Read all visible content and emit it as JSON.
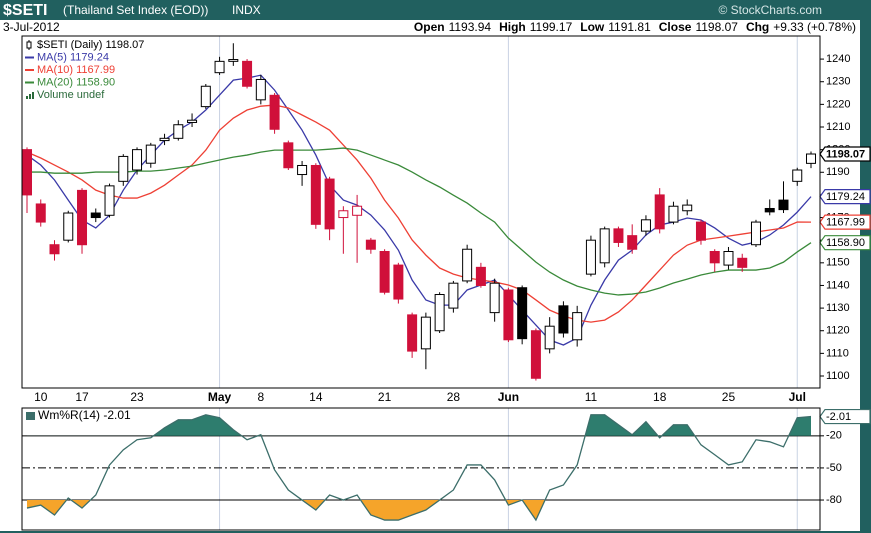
{
  "chart_data": [
    {
      "type": "candlestick",
      "title": "$SETI",
      "subtitle": "(Thailand Set Index (EOD))",
      "exchange": "INDX",
      "source": "© StockCharts.com",
      "date": "3-Jul-2012",
      "header_labels": [
        "Open",
        "High",
        "Low",
        "Close",
        "Chg"
      ],
      "change": "+9.33 (+0.78%)",
      "categories": [
        null,
        "10",
        null,
        null,
        "17",
        null,
        null,
        null,
        "23",
        null,
        null,
        null,
        null,
        null,
        "May",
        null,
        null,
        "8",
        null,
        null,
        null,
        "14",
        null,
        null,
        null,
        null,
        "21",
        null,
        null,
        null,
        null,
        "28",
        null,
        null,
        null,
        "Jun",
        null,
        null,
        null,
        null,
        null,
        "11",
        null,
        null,
        null,
        null,
        "18",
        null,
        null,
        null,
        null,
        "25",
        null,
        null,
        null,
        null,
        "Jul",
        null
      ],
      "series": [
        {
          "name": "$SETI (Daily) 1198.07",
          "open": [
            1200,
            1176,
            1158,
            1160,
            1182,
            1172,
            1171,
            1186,
            1191,
            1194,
            1204,
            1205,
            1212,
            1219,
            1234,
            1239,
            1239,
            1222,
            1224,
            1203,
            1189,
            1193,
            1187,
            1170,
            1171,
            1160,
            1155,
            1149,
            1127,
            1112,
            1120,
            1130,
            1142,
            1148,
            1128,
            1138,
            1139,
            1120,
            1112,
            1131,
            1116,
            1145,
            1150,
            1165,
            1162,
            1164,
            1180,
            1168,
            1173,
            1168,
            1155,
            1149,
            1152,
            1158,
            1174,
            1177.7,
            1186,
            1193.94
          ],
          "high": [
            1201,
            1178,
            1160,
            1173,
            1183,
            1174,
            1185,
            1198,
            1201,
            1203,
            1207,
            1213,
            1216,
            1229,
            1241,
            1247,
            1240,
            1233,
            1225,
            1204,
            1195,
            1194,
            1188,
            1175,
            1180,
            1161,
            1156,
            1150,
            1128,
            1128,
            1137,
            1142,
            1158,
            1150,
            1143,
            1139,
            1140,
            1121,
            1126,
            1133,
            1131,
            1162,
            1166,
            1166,
            1167,
            1171,
            1183,
            1177,
            1178,
            1169,
            1156,
            1157,
            1154,
            1169,
            1178,
            1186,
            1192,
            1199.17
          ],
          "low": [
            1172,
            1166,
            1151,
            1159,
            1154,
            1168,
            1170,
            1184,
            1189,
            1192,
            1202,
            1204,
            1210,
            1218,
            1233,
            1237,
            1227,
            1220,
            1207,
            1191,
            1184,
            1165,
            1160,
            1154,
            1150,
            1154,
            1136,
            1132,
            1108,
            1103,
            1119,
            1128,
            1141,
            1139,
            1124,
            1115,
            1114,
            1098,
            1110,
            1117,
            1113,
            1144,
            1148,
            1157,
            1154,
            1162,
            1163,
            1167,
            1171,
            1158,
            1146,
            1147,
            1146,
            1157,
            1171,
            1172,
            1184,
            1191.81
          ],
          "close": [
            1180,
            1168,
            1154,
            1172,
            1158,
            1170,
            1184,
            1197,
            1200,
            1202,
            1205,
            1211,
            1213,
            1228,
            1239,
            1239.8,
            1228,
            1231,
            1209,
            1192,
            1193,
            1167,
            1165,
            1173,
            1175,
            1156,
            1137,
            1134,
            1111,
            1126,
            1136,
            1141,
            1156,
            1140,
            1141,
            1116,
            1116.5,
            1099,
            1122,
            1119,
            1128,
            1160,
            1165,
            1159,
            1156,
            1169,
            1165,
            1175,
            1175.5,
            1160,
            1150,
            1155,
            1148,
            1168,
            1172.5,
            1173.5,
            1191,
            1198.07
          ],
          "colors": [
            "#d0103a",
            "#d0103a",
            "#d0103a",
            "#000000",
            "#d0103a",
            "#000000",
            "#000000",
            "#000000",
            "#000000",
            "#000000",
            "#000000",
            "#000000",
            "#000000",
            "#000000",
            "#000000",
            "#000000",
            "#d0103a",
            "#000000",
            "#d0103a",
            "#d0103a",
            "#000000",
            "#d0103a",
            "#d0103a",
            "#d0103a",
            "#d0103a",
            "#d0103a",
            "#d0103a",
            "#d0103a",
            "#d0103a",
            "#000000",
            "#000000",
            "#000000",
            "#000000",
            "#d0103a",
            "#000000",
            "#d0103a",
            "#000000",
            "#d0103a",
            "#000000",
            "#000000",
            "#000000",
            "#000000",
            "#000000",
            "#d0103a",
            "#d0103a",
            "#000000",
            "#d0103a",
            "#000000",
            "#000000",
            "#d0103a",
            "#d0103a",
            "#000000",
            "#d0103a",
            "#000000",
            "#000000",
            "#000000",
            "#000000",
            "#000000"
          ]
        },
        {
          "name": "MA(5) 1179.24",
          "color": "#3a3aa8",
          "values": [
            1197.6,
            1193.2,
            1186.6,
            1177.7,
            1168.9,
            1165.4,
            1171.1,
            1182.1,
            1191,
            1197.6,
            1204.2,
            1208.6,
            1212.2,
            1217.5,
            1224.1,
            1230.7,
            1231.6,
            1232.9,
            1226.3,
            1217.5,
            1208.6,
            1197.6,
            1184.3,
            1177.7,
            1175.5,
            1171.1,
            1164.5,
            1155.6,
            1142.4,
            1133.6,
            1131.3,
            1131.3,
            1138,
            1140.2,
            1142.4,
            1135.8,
            1129.1,
            1122.5,
            1115.9,
            1113.7,
            1116.8,
            1131.3,
            1142.4,
            1151.2,
            1155.6,
            1162.3,
            1166.7,
            1168,
            1169.8,
            1168.9,
            1165.4,
            1160.9,
            1157.8,
            1159.2,
            1162.3,
            1166.7,
            1172.4,
            1179.24
          ]
        },
        {
          "name": "MA(10) 1167.99",
          "color": "#ee4035",
          "values": [
            1198.9,
            1196.3,
            1193.2,
            1190.1,
            1186.6,
            1182.1,
            1179.9,
            1178.6,
            1178.6,
            1180.8,
            1184.3,
            1188.8,
            1193.2,
            1199.8,
            1208.6,
            1213.9,
            1217.5,
            1219.2,
            1219.7,
            1218.4,
            1215.3,
            1212.2,
            1208.6,
            1202,
            1195.4,
            1187.4,
            1177.7,
            1169.8,
            1160.1,
            1153.4,
            1147.7,
            1145,
            1143.3,
            1142.4,
            1141.5,
            1140.2,
            1138,
            1133.6,
            1129.1,
            1126.5,
            1124.7,
            1123.8,
            1124.7,
            1128.3,
            1133.6,
            1140.2,
            1146.8,
            1153.4,
            1157.8,
            1160.1,
            1160.9,
            1161.8,
            1162.7,
            1163.6,
            1164.5,
            1165.4,
            1168,
            1167.99
          ]
        },
        {
          "name": "MA(20) 1158.90",
          "color": "#3a8a3a",
          "end_label": "1158.90",
          "values": [
            1190.1,
            1190.1,
            1189.6,
            1189.6,
            1189.6,
            1190.1,
            1190.1,
            1190.1,
            1190.5,
            1190.5,
            1191,
            1191.9,
            1192.7,
            1194.1,
            1195.4,
            1196.7,
            1197.6,
            1198.9,
            1199.8,
            1199.8,
            1199.8,
            1199.8,
            1200.2,
            1200.7,
            1199.8,
            1197.6,
            1195.4,
            1193.2,
            1190.1,
            1186.6,
            1183.5,
            1179.9,
            1176.4,
            1172,
            1168,
            1160.9,
            1155.6,
            1150.3,
            1145.9,
            1142.4,
            1139.7,
            1138,
            1136.6,
            1135.8,
            1136.2,
            1137.1,
            1138.9,
            1141.1,
            1142.8,
            1144.6,
            1145.9,
            1146.8,
            1146.8,
            1146.8,
            1147.7,
            1150.3,
            1154.8,
            1158.9
          ]
        }
      ],
      "volume_legend": "Volume undef",
      "volume_color": "#2a6a3a",
      "ylim": [
        1094.7,
        1250.2
      ],
      "yticks": [
        1100,
        1110,
        1120,
        1130,
        1140,
        1150,
        1160,
        1170,
        1180,
        1190,
        1200,
        1210,
        1220,
        1230,
        1240
      ],
      "month_line_color": "#c9d2e3"
    },
    {
      "type": "line",
      "series": [
        {
          "name": "Wm%R(14) -2.01",
          "color": "#3c6e6a",
          "values": [
            -87.5,
            -84.7,
            -94,
            -78.1,
            -87.5,
            -75.3,
            -47.2,
            -33.1,
            -23.7,
            -21.8,
            -12.5,
            -5,
            -5,
            -0.3,
            -3.1,
            -14.3,
            -23.7,
            -19,
            -51.8,
            -70.6,
            -80,
            -89.3,
            -75.3,
            -80,
            -75.3,
            -94,
            -98.7,
            -98.7,
            -94,
            -89.3,
            -80,
            -70.6,
            -47.2,
            -47.2,
            -61.2,
            -84.7,
            -80,
            -98.7,
            -70.6,
            -65.9,
            -47.2,
            -0.3,
            -0.3,
            -9.7,
            -19,
            -6.8,
            -21.8,
            -9.7,
            -9.7,
            -28.4,
            -37.7,
            -47.2,
            -44.3,
            -23.7,
            -25.6,
            -30.3,
            -3.1,
            -2.01
          ]
        }
      ],
      "ylim": [
        -108,
        6
      ],
      "yticks": [
        -20,
        -50,
        -80
      ],
      "bands": [
        {
          "level": -20,
          "side": "above",
          "color": "#2e7d6e"
        },
        {
          "level": -80,
          "side": "below",
          "color": "#f5a42a"
        }
      ]
    }
  ]
}
